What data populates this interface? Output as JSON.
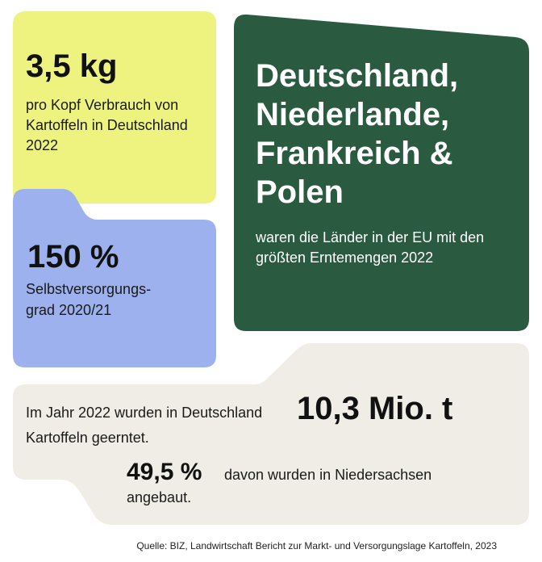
{
  "colors": {
    "yellow": "#eef37f",
    "blue": "#9cb1ee",
    "green": "#2a5b40",
    "beige": "#efede6",
    "text": "#111111",
    "white": "#ffffff"
  },
  "card_potato_consumption": {
    "value": "3,5 kg",
    "description": "pro Kopf Verbrauch von Kartoffeln in Deutschland 2022"
  },
  "card_self_sufficiency": {
    "value": "150 %",
    "description_line1": "Selbstversorgungs-",
    "description_line2": "grad 2020/21"
  },
  "card_eu_countries": {
    "headline_line1": "Deutschland,",
    "headline_line2": "Niederlande,",
    "headline_line3": "Frankreich &",
    "headline_line4": "Polen",
    "description": "waren die Länder in der EU mit den größten Erntemengen 2022"
  },
  "card_harvest": {
    "intro": "Im Jahr 2022 wurden in Deutschland",
    "value": "10,3 Mio. t",
    "outro": "Kartoffeln geerntet.",
    "share_value": "49,5 %",
    "share_text_line1": "davon wurden in Niedersachsen",
    "share_text_line2": "angebaut."
  },
  "source": "Quelle: BIZ, Landwirtschaft Bericht zur Markt- und Versorgungslage Kartoffeln, 2023"
}
